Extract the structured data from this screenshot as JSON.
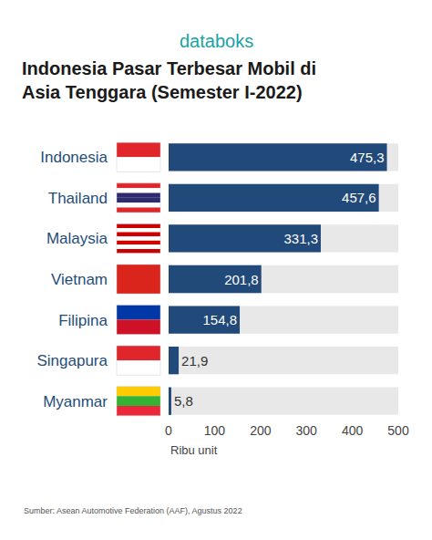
{
  "header": {
    "brand": "databoks"
  },
  "chart_data": {
    "type": "bar",
    "orientation": "horizontal",
    "title": "Indonesia Pasar Terbesar Mobil di Asia Tenggara (Semester I-2022)",
    "categories": [
      "Indonesia",
      "Thailand",
      "Malaysia",
      "Vietnam",
      "Filipina",
      "Singapura",
      "Myanmar"
    ],
    "values": [
      475.3,
      457.6,
      331.3,
      201.8,
      154.8,
      21.9,
      5.8
    ],
    "value_labels": [
      "475,3",
      "457,6",
      "331,3",
      "201,8",
      "154,8",
      "21,9",
      "5,8"
    ],
    "color": "#21497a",
    "xlabel": "Ribu unit",
    "xlim": [
      0,
      500
    ],
    "xticks": [
      0,
      100,
      200,
      300,
      400,
      500
    ],
    "grid": false,
    "data_labels": true,
    "source": "Sumber: Asean Automotive Federation (AAF), Agustus 2022"
  }
}
